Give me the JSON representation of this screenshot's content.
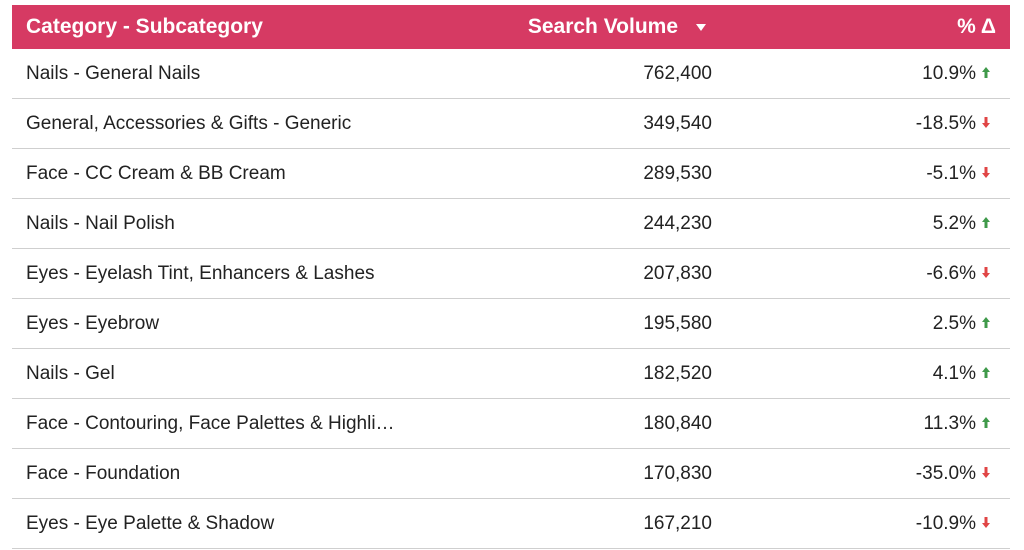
{
  "table": {
    "headers": {
      "category": "Category - Subcategory",
      "volume": "Search Volume",
      "pct": "% Δ"
    },
    "sort_icon": "sort-down-caret-icon",
    "colors": {
      "header_bg": "#d63a63",
      "up": "#3f9a4a",
      "down": "#e04545"
    },
    "rows": [
      {
        "category": "Nails - General Nails",
        "volume": "762,400",
        "pct": "10.9%",
        "dir": "up"
      },
      {
        "category": "General, Accessories & Gifts - Generic",
        "volume": "349,540",
        "pct": "-18.5%",
        "dir": "down"
      },
      {
        "category": "Face - CC Cream & BB Cream",
        "volume": "289,530",
        "pct": "-5.1%",
        "dir": "down"
      },
      {
        "category": "Nails - Nail Polish",
        "volume": "244,230",
        "pct": "5.2%",
        "dir": "up"
      },
      {
        "category": "Eyes - Eyelash Tint, Enhancers & Lashes",
        "volume": "207,830",
        "pct": "-6.6%",
        "dir": "down"
      },
      {
        "category": "Eyes - Eyebrow",
        "volume": "195,580",
        "pct": "2.5%",
        "dir": "up"
      },
      {
        "category": "Nails - Gel",
        "volume": "182,520",
        "pct": "4.1%",
        "dir": "up"
      },
      {
        "category": "Face - Contouring, Face Palettes & Highli…",
        "volume": "180,840",
        "pct": "11.3%",
        "dir": "up"
      },
      {
        "category": "Face - Foundation",
        "volume": "170,830",
        "pct": "-35.0%",
        "dir": "down"
      },
      {
        "category": "Eyes - Eye Palette & Shadow",
        "volume": "167,210",
        "pct": "-10.9%",
        "dir": "down"
      }
    ]
  },
  "chart_data": {
    "type": "table",
    "columns": [
      "Category - Subcategory",
      "Search Volume",
      "% Δ"
    ],
    "rows": [
      [
        "Nails - General Nails",
        762400,
        10.9
      ],
      [
        "General, Accessories & Gifts - Generic",
        349540,
        -18.5
      ],
      [
        "Face - CC Cream & BB Cream",
        289530,
        -5.1
      ],
      [
        "Nails - Nail Polish",
        244230,
        5.2
      ],
      [
        "Eyes - Eyelash Tint, Enhancers & Lashes",
        207830,
        -6.6
      ],
      [
        "Eyes - Eyebrow",
        195580,
        2.5
      ],
      [
        "Nails - Gel",
        182520,
        4.1
      ],
      [
        "Face - Contouring, Face Palettes & Highli…",
        180840,
        11.3
      ],
      [
        "Face - Foundation",
        170830,
        -35.0
      ],
      [
        "Eyes - Eye Palette & Shadow",
        167210,
        -10.9
      ]
    ],
    "sorted_by": "Search Volume",
    "sort_order": "descending"
  }
}
